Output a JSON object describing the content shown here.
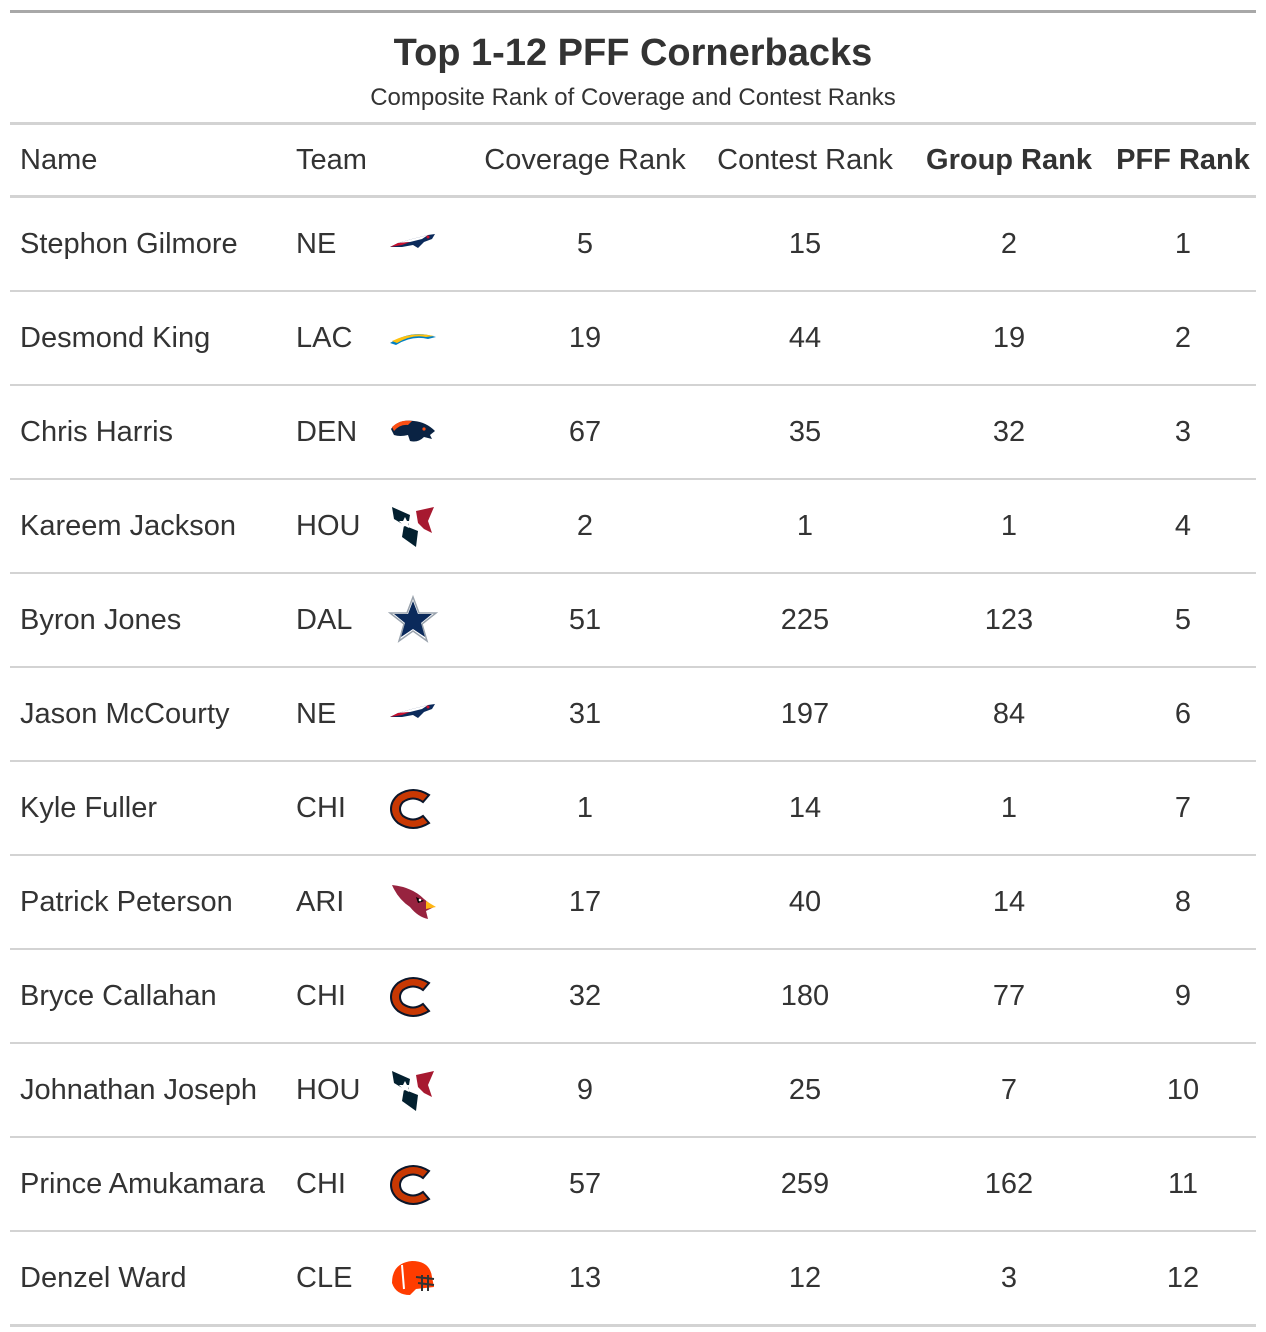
{
  "title": "Top 1-12 PFF Cornerbacks",
  "subtitle": "Composite Rank of Coverage and Contest Ranks",
  "columns": {
    "name": "Name",
    "team": "Team",
    "coverage": "Coverage Rank",
    "contest": "Contest Rank",
    "group": "Group Rank",
    "pff": "PFF Rank"
  },
  "rows": [
    {
      "name": "Stephon Gilmore",
      "team": "NE",
      "logo": "patriots-logo-icon",
      "coverage": "5",
      "contest": "15",
      "group": "2",
      "pff": "1"
    },
    {
      "name": "Desmond King",
      "team": "LAC",
      "logo": "chargers-logo-icon",
      "coverage": "19",
      "contest": "44",
      "group": "19",
      "pff": "2"
    },
    {
      "name": "Chris Harris",
      "team": "DEN",
      "logo": "broncos-logo-icon",
      "coverage": "67",
      "contest": "35",
      "group": "32",
      "pff": "3"
    },
    {
      "name": "Kareem Jackson",
      "team": "HOU",
      "logo": "texans-logo-icon",
      "coverage": "2",
      "contest": "1",
      "group": "1",
      "pff": "4"
    },
    {
      "name": "Byron Jones",
      "team": "DAL",
      "logo": "cowboys-logo-icon",
      "coverage": "51",
      "contest": "225",
      "group": "123",
      "pff": "5"
    },
    {
      "name": "Jason McCourty",
      "team": "NE",
      "logo": "patriots-logo-icon",
      "coverage": "31",
      "contest": "197",
      "group": "84",
      "pff": "6"
    },
    {
      "name": "Kyle Fuller",
      "team": "CHI",
      "logo": "bears-logo-icon",
      "coverage": "1",
      "contest": "14",
      "group": "1",
      "pff": "7"
    },
    {
      "name": "Patrick Peterson",
      "team": "ARI",
      "logo": "cardinals-logo-icon",
      "coverage": "17",
      "contest": "40",
      "group": "14",
      "pff": "8"
    },
    {
      "name": "Bryce Callahan",
      "team": "CHI",
      "logo": "bears-logo-icon",
      "coverage": "32",
      "contest": "180",
      "group": "77",
      "pff": "9"
    },
    {
      "name": "Johnathan Joseph",
      "team": "HOU",
      "logo": "texans-logo-icon",
      "coverage": "9",
      "contest": "25",
      "group": "7",
      "pff": "10"
    },
    {
      "name": "Prince Amukamara",
      "team": "CHI",
      "logo": "bears-logo-icon",
      "coverage": "57",
      "contest": "259",
      "group": "162",
      "pff": "11"
    },
    {
      "name": "Denzel Ward",
      "team": "CLE",
      "logo": "browns-logo-icon",
      "coverage": "13",
      "contest": "12",
      "group": "3",
      "pff": "12"
    }
  ]
}
